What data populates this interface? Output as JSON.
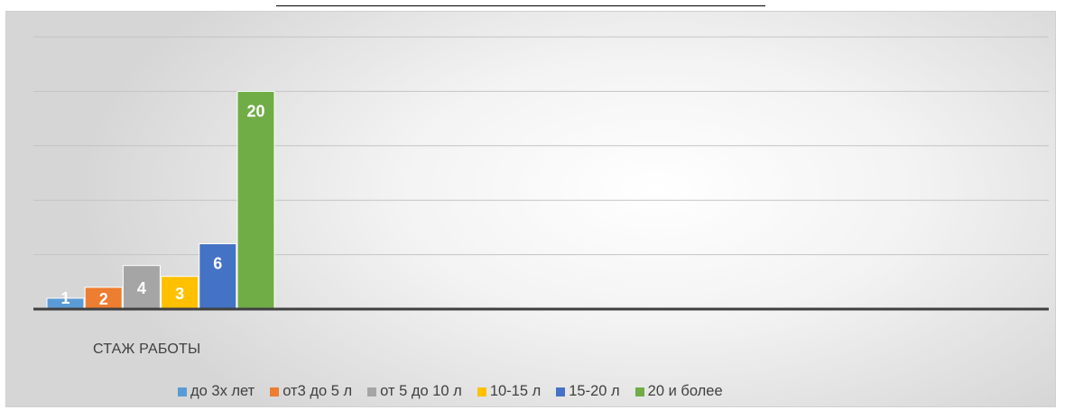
{
  "chart_data": {
    "type": "bar",
    "categories": [
      "СТАЖ РАБОТЫ"
    ],
    "series": [
      {
        "name": "до 3х лет",
        "values": [
          1
        ],
        "color": "#5b9bd5"
      },
      {
        "name": "от3 до 5 л",
        "values": [
          2
        ],
        "color": "#ed7d31"
      },
      {
        "name": "от 5 до 10 л",
        "values": [
          4
        ],
        "color": "#a5a5a5"
      },
      {
        "name": "10-15 л",
        "values": [
          3
        ],
        "color": "#ffc000"
      },
      {
        "name": "15-20 л",
        "values": [
          6
        ],
        "color": "#4472c4"
      },
      {
        "name": "20 и более",
        "values": [
          20
        ],
        "color": "#70ad47"
      }
    ],
    "ylim": [
      0,
      25
    ],
    "grid": true,
    "legend": "bottom",
    "data_labels": true,
    "title": "",
    "xlabel": "",
    "ylabel": ""
  }
}
